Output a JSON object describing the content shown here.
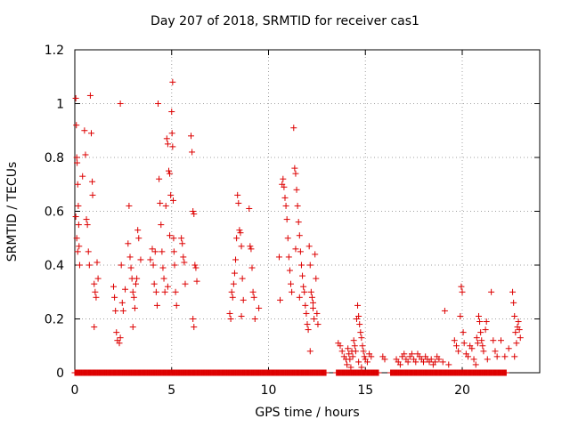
{
  "chart_data": {
    "type": "scatter",
    "title": "Day 207 of 2018, SRMTID for receiver cas1",
    "xlabel": "GPS time / hours",
    "ylabel": "SRMTID / TECUs",
    "xlim": [
      0,
      24
    ],
    "ylim": [
      0,
      1.2
    ],
    "xticks": [
      0,
      5,
      10,
      15,
      20
    ],
    "yticks": [
      0,
      0.2,
      0.4,
      0.6,
      0.8,
      1,
      1.2
    ],
    "xtick_labels": [
      "0",
      "5",
      "10",
      "15",
      "20"
    ],
    "ytick_labels": [
      "0",
      "0.2",
      "0.4",
      "0.6",
      "0.8",
      "1",
      "1.2"
    ],
    "grid": true,
    "marker": "plus",
    "color": "#dd0000",
    "series": [
      {
        "name": "cas1",
        "points": [
          [
            0.05,
            1.02
          ],
          [
            0.08,
            0.92
          ],
          [
            0.1,
            0.8
          ],
          [
            0.12,
            0.78
          ],
          [
            0.15,
            0.7
          ],
          [
            0.18,
            0.62
          ],
          [
            0.2,
            0.55
          ],
          [
            0.22,
            0.47
          ],
          [
            0.25,
            0.4
          ],
          [
            0.05,
            0.58
          ],
          [
            0.1,
            0.5
          ],
          [
            0.15,
            0.45
          ],
          [
            0.4,
            0.73
          ],
          [
            0.5,
            0.9
          ],
          [
            0.55,
            0.81
          ],
          [
            0.6,
            0.57
          ],
          [
            0.65,
            0.55
          ],
          [
            0.7,
            0.45
          ],
          [
            0.75,
            0.4
          ],
          [
            0.8,
            1.03
          ],
          [
            0.85,
            0.89
          ],
          [
            0.9,
            0.71
          ],
          [
            0.92,
            0.66
          ],
          [
            1.0,
            0.33
          ],
          [
            1.05,
            0.3
          ],
          [
            1.1,
            0.28
          ],
          [
            1.15,
            0.41
          ],
          [
            1.0,
            0.17
          ],
          [
            1.2,
            0.35
          ],
          [
            2.0,
            0.32
          ],
          [
            2.05,
            0.28
          ],
          [
            2.1,
            0.23
          ],
          [
            2.15,
            0.15
          ],
          [
            2.2,
            0.12
          ],
          [
            2.3,
            0.11
          ],
          [
            2.35,
            0.13
          ],
          [
            2.4,
            0.4
          ],
          [
            2.45,
            0.26
          ],
          [
            2.5,
            0.23
          ],
          [
            2.35,
            1.0
          ],
          [
            2.6,
            0.31
          ],
          [
            2.75,
            0.48
          ],
          [
            2.8,
            0.62
          ],
          [
            2.85,
            0.43
          ],
          [
            2.9,
            0.39
          ],
          [
            2.95,
            0.35
          ],
          [
            3.0,
            0.3
          ],
          [
            3.05,
            0.28
          ],
          [
            3.1,
            0.24
          ],
          [
            3.15,
            0.33
          ],
          [
            3.2,
            0.35
          ],
          [
            3.25,
            0.53
          ],
          [
            3.3,
            0.5
          ],
          [
            3.4,
            0.42
          ],
          [
            3.0,
            0.17
          ],
          [
            3.9,
            0.42
          ],
          [
            4.0,
            0.46
          ],
          [
            4.05,
            0.4
          ],
          [
            4.1,
            0.33
          ],
          [
            4.15,
            0.45
          ],
          [
            4.2,
            0.3
          ],
          [
            4.25,
            0.25
          ],
          [
            4.3,
            1.0
          ],
          [
            4.35,
            0.72
          ],
          [
            4.4,
            0.63
          ],
          [
            4.45,
            0.55
          ],
          [
            4.5,
            0.45
          ],
          [
            4.55,
            0.39
          ],
          [
            4.6,
            0.35
          ],
          [
            4.65,
            0.3
          ],
          [
            4.7,
            0.62
          ],
          [
            4.75,
            0.87
          ],
          [
            4.8,
            0.85
          ],
          [
            4.85,
            0.75
          ],
          [
            4.9,
            0.74
          ],
          [
            4.95,
            0.66
          ],
          [
            5.0,
            0.97
          ],
          [
            5.02,
            0.89
          ],
          [
            5.05,
            0.84
          ],
          [
            5.08,
            0.64
          ],
          [
            5.1,
            0.5
          ],
          [
            5.12,
            0.45
          ],
          [
            5.15,
            0.4
          ],
          [
            5.2,
            0.3
          ],
          [
            5.25,
            0.25
          ],
          [
            5.05,
            1.08
          ],
          [
            4.9,
            0.51
          ],
          [
            4.8,
            0.32
          ],
          [
            5.5,
            0.5
          ],
          [
            5.55,
            0.48
          ],
          [
            5.6,
            0.43
          ],
          [
            5.65,
            0.41
          ],
          [
            5.7,
            0.33
          ],
          [
            6.0,
            0.88
          ],
          [
            6.05,
            0.82
          ],
          [
            6.1,
            0.6
          ],
          [
            6.15,
            0.59
          ],
          [
            6.2,
            0.4
          ],
          [
            6.25,
            0.39
          ],
          [
            6.3,
            0.34
          ],
          [
            6.1,
            0.2
          ],
          [
            6.15,
            0.17
          ],
          [
            8.0,
            0.22
          ],
          [
            8.05,
            0.2
          ],
          [
            8.1,
            0.3
          ],
          [
            8.15,
            0.28
          ],
          [
            8.2,
            0.33
          ],
          [
            8.25,
            0.37
          ],
          [
            8.3,
            0.42
          ],
          [
            8.35,
            0.5
          ],
          [
            8.4,
            0.66
          ],
          [
            8.45,
            0.63
          ],
          [
            8.5,
            0.53
          ],
          [
            8.55,
            0.52
          ],
          [
            8.6,
            0.47
          ],
          [
            8.65,
            0.35
          ],
          [
            8.7,
            0.27
          ],
          [
            8.6,
            0.21
          ],
          [
            9.0,
            0.61
          ],
          [
            9.05,
            0.47
          ],
          [
            9.1,
            0.46
          ],
          [
            9.15,
            0.39
          ],
          [
            9.2,
            0.3
          ],
          [
            9.25,
            0.28
          ],
          [
            9.3,
            0.2
          ],
          [
            9.5,
            0.24
          ],
          [
            10.55,
            0.43
          ],
          [
            10.6,
            0.27
          ],
          [
            10.7,
            0.7
          ],
          [
            10.75,
            0.72
          ],
          [
            10.8,
            0.69
          ],
          [
            10.85,
            0.65
          ],
          [
            10.9,
            0.62
          ],
          [
            10.95,
            0.57
          ],
          [
            11.0,
            0.5
          ],
          [
            11.05,
            0.43
          ],
          [
            11.1,
            0.38
          ],
          [
            11.15,
            0.33
          ],
          [
            11.2,
            0.3
          ],
          [
            11.3,
            0.91
          ],
          [
            11.35,
            0.76
          ],
          [
            11.4,
            0.74
          ],
          [
            11.45,
            0.68
          ],
          [
            11.5,
            0.62
          ],
          [
            11.55,
            0.56
          ],
          [
            11.6,
            0.51
          ],
          [
            11.65,
            0.45
          ],
          [
            11.7,
            0.4
          ],
          [
            11.75,
            0.36
          ],
          [
            11.8,
            0.32
          ],
          [
            11.85,
            0.3
          ],
          [
            11.9,
            0.25
          ],
          [
            11.95,
            0.22
          ],
          [
            12.0,
            0.18
          ],
          [
            12.05,
            0.16
          ],
          [
            12.1,
            0.47
          ],
          [
            12.15,
            0.4
          ],
          [
            12.2,
            0.3
          ],
          [
            12.25,
            0.28
          ],
          [
            12.3,
            0.24
          ],
          [
            12.35,
            0.2
          ],
          [
            12.4,
            0.44
          ],
          [
            12.45,
            0.35
          ],
          [
            12.5,
            0.22
          ],
          [
            12.55,
            0.18
          ],
          [
            12.15,
            0.08
          ],
          [
            11.6,
            0.28
          ],
          [
            11.4,
            0.46
          ],
          [
            12.3,
            0.26
          ],
          [
            13.6,
            0.11
          ],
          [
            13.7,
            0.1
          ],
          [
            13.8,
            0.08
          ],
          [
            13.9,
            0.06
          ],
          [
            14.0,
            0.05
          ],
          [
            14.05,
            0.03
          ],
          [
            14.1,
            0.09
          ],
          [
            14.15,
            0.07
          ],
          [
            14.2,
            0.05
          ],
          [
            14.25,
            0.02
          ],
          [
            14.3,
            0.08
          ],
          [
            14.35,
            0.06
          ],
          [
            14.4,
            0.12
          ],
          [
            14.45,
            0.1
          ],
          [
            14.5,
            0.08
          ],
          [
            14.55,
            0.2
          ],
          [
            14.6,
            0.25
          ],
          [
            14.65,
            0.21
          ],
          [
            14.7,
            0.18
          ],
          [
            14.75,
            0.15
          ],
          [
            14.8,
            0.13
          ],
          [
            14.85,
            0.1
          ],
          [
            14.9,
            0.08
          ],
          [
            14.95,
            0.06
          ],
          [
            15.0,
            0.05
          ],
          [
            15.1,
            0.04
          ],
          [
            15.2,
            0.07
          ],
          [
            15.3,
            0.06
          ],
          [
            14.65,
            0.04
          ],
          [
            14.8,
            0.02
          ],
          [
            15.9,
            0.06
          ],
          [
            16.0,
            0.05
          ],
          [
            16.6,
            0.05
          ],
          [
            16.7,
            0.04
          ],
          [
            16.8,
            0.03
          ],
          [
            16.9,
            0.06
          ],
          [
            17.0,
            0.07
          ],
          [
            17.1,
            0.05
          ],
          [
            17.2,
            0.04
          ],
          [
            17.3,
            0.06
          ],
          [
            17.4,
            0.07
          ],
          [
            17.5,
            0.05
          ],
          [
            17.6,
            0.04
          ],
          [
            17.7,
            0.07
          ],
          [
            17.8,
            0.06
          ],
          [
            17.9,
            0.05
          ],
          [
            18.0,
            0.04
          ],
          [
            18.1,
            0.06
          ],
          [
            18.2,
            0.05
          ],
          [
            18.3,
            0.04
          ],
          [
            18.4,
            0.05
          ],
          [
            18.5,
            0.03
          ],
          [
            18.6,
            0.04
          ],
          [
            18.7,
            0.06
          ],
          [
            18.8,
            0.05
          ],
          [
            19.0,
            0.04
          ],
          [
            19.1,
            0.23
          ],
          [
            19.3,
            0.03
          ],
          [
            19.6,
            0.12
          ],
          [
            19.7,
            0.1
          ],
          [
            19.8,
            0.08
          ],
          [
            19.9,
            0.21
          ],
          [
            19.95,
            0.32
          ],
          [
            20.0,
            0.3
          ],
          [
            20.05,
            0.15
          ],
          [
            20.1,
            0.11
          ],
          [
            20.2,
            0.07
          ],
          [
            20.3,
            0.06
          ],
          [
            20.4,
            0.1
          ],
          [
            20.5,
            0.09
          ],
          [
            20.6,
            0.05
          ],
          [
            20.7,
            0.03
          ],
          [
            20.75,
            0.13
          ],
          [
            20.8,
            0.11
          ],
          [
            20.85,
            0.21
          ],
          [
            20.9,
            0.19
          ],
          [
            20.95,
            0.15
          ],
          [
            21.0,
            0.12
          ],
          [
            21.05,
            0.1
          ],
          [
            21.1,
            0.08
          ],
          [
            21.2,
            0.16
          ],
          [
            21.25,
            0.19
          ],
          [
            21.3,
            0.05
          ],
          [
            21.5,
            0.3
          ],
          [
            21.6,
            0.12
          ],
          [
            21.7,
            0.08
          ],
          [
            21.8,
            0.06
          ],
          [
            22.0,
            0.12
          ],
          [
            22.2,
            0.06
          ],
          [
            22.4,
            0.09
          ],
          [
            22.6,
            0.3
          ],
          [
            22.65,
            0.26
          ],
          [
            22.7,
            0.21
          ],
          [
            22.75,
            0.15
          ],
          [
            22.8,
            0.11
          ],
          [
            22.85,
            0.17
          ],
          [
            22.9,
            0.19
          ],
          [
            22.95,
            0.16
          ],
          [
            23.0,
            0.13
          ],
          [
            22.7,
            0.06
          ]
        ],
        "zero_x_ranges": [
          [
            0.0,
            13.0
          ],
          [
            13.5,
            15.7
          ],
          [
            16.3,
            19.5
          ],
          [
            19.5,
            22.3
          ]
        ]
      }
    ]
  }
}
